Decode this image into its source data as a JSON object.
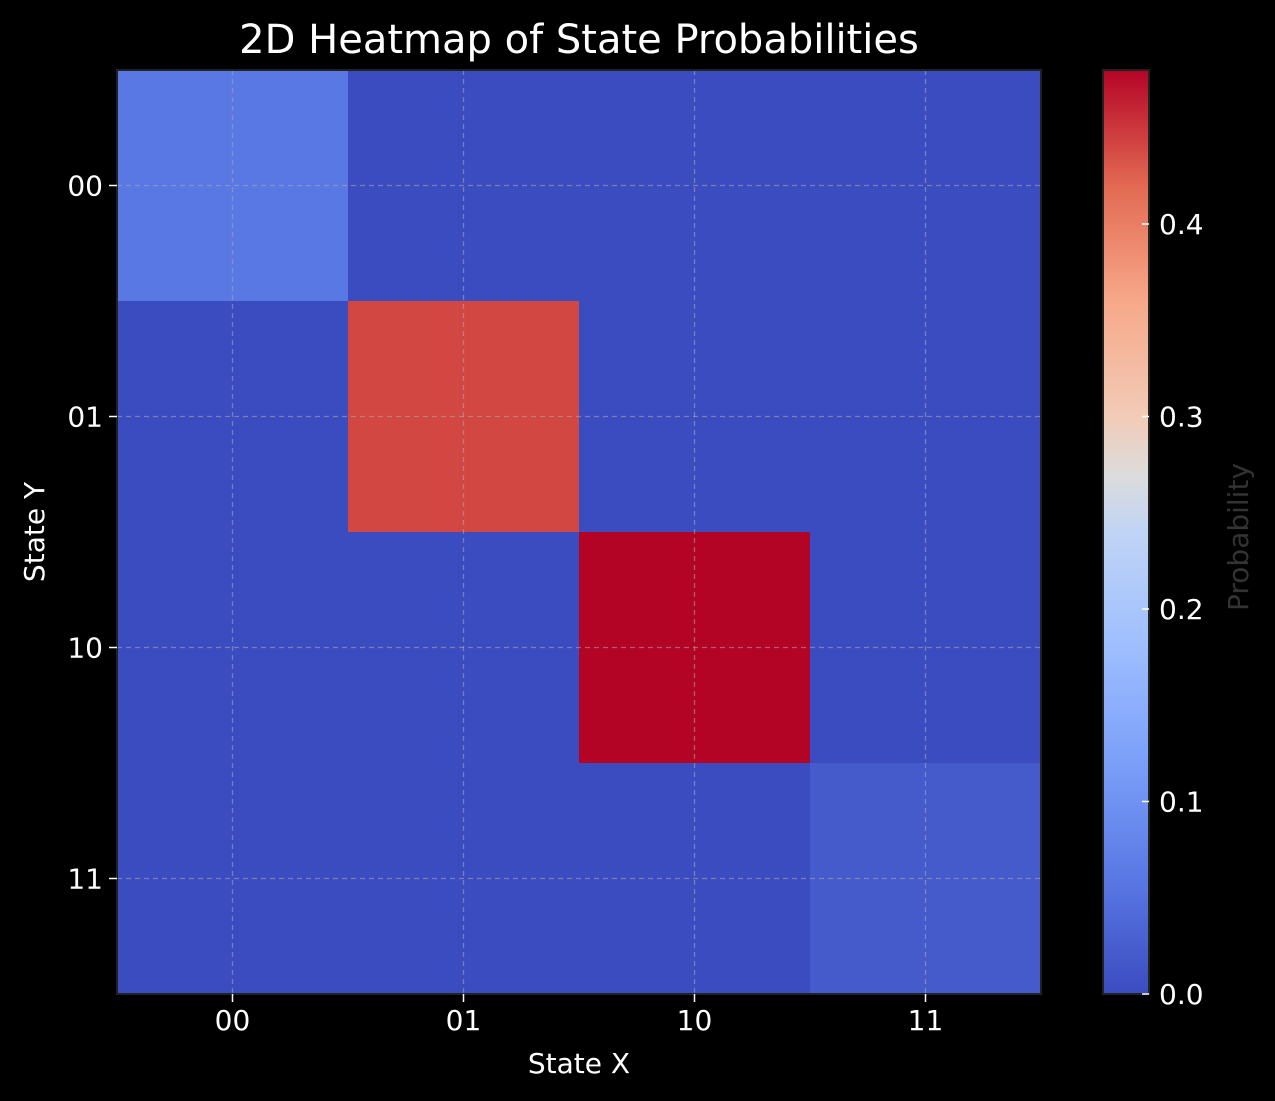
{
  "chart_data": {
    "type": "heatmap",
    "title": "2D Heatmap of State Probabilities",
    "xlabel": "State X",
    "ylabel": "State Y",
    "x_categories": [
      "00",
      "01",
      "10",
      "11"
    ],
    "y_categories": [
      "00",
      "01",
      "10",
      "11"
    ],
    "values": [
      [
        0.06,
        0.0,
        0.0,
        0.0
      ],
      [
        0.0,
        0.44,
        0.0,
        0.0
      ],
      [
        0.0,
        0.0,
        0.48,
        0.0
      ],
      [
        0.0,
        0.0,
        0.0,
        0.02
      ]
    ],
    "colorbar": {
      "label": "Probability",
      "range": [
        0.0,
        0.48
      ],
      "ticks": [
        0.0,
        0.1,
        0.2,
        0.3,
        0.4
      ],
      "tick_labels": [
        "0.0",
        "0.1",
        "0.2",
        "0.3",
        "0.4"
      ],
      "colormap": "coolwarm"
    },
    "grid": true
  },
  "colors": {
    "background": "#000000",
    "text": "#ffffff",
    "colorbar_label": "#333333",
    "grid": "#aaaaaa"
  }
}
